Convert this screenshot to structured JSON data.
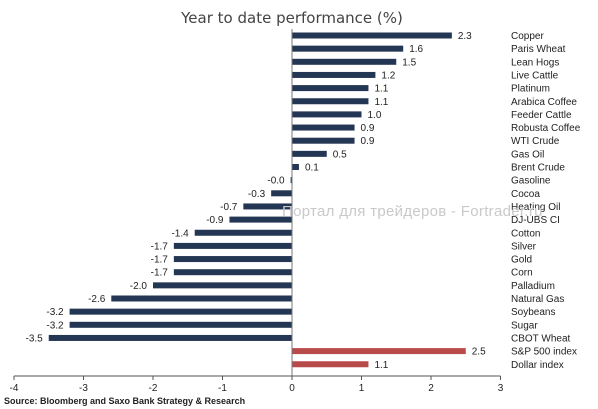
{
  "chart_data": {
    "type": "bar",
    "orientation": "horizontal",
    "title": "Year to date performance (%)",
    "xlim": [
      -4,
      3
    ],
    "x_ticks": [
      -4,
      -3,
      -2,
      -1,
      0,
      1,
      2,
      3
    ],
    "grid": false,
    "series_colors": {
      "commodity": "#233653",
      "index": "#b94a4a"
    },
    "bars": [
      {
        "label": "Copper",
        "value": 2.3,
        "value_text": "2.3",
        "group": "commodity"
      },
      {
        "label": "Paris Wheat",
        "value": 1.6,
        "value_text": "1.6",
        "group": "commodity"
      },
      {
        "label": "Lean Hogs",
        "value": 1.5,
        "value_text": "1.5",
        "group": "commodity"
      },
      {
        "label": "Live Cattle",
        "value": 1.2,
        "value_text": "1.2",
        "group": "commodity"
      },
      {
        "label": "Platinum",
        "value": 1.1,
        "value_text": "1.1",
        "group": "commodity"
      },
      {
        "label": "Arabica Coffee",
        "value": 1.1,
        "value_text": "1.1",
        "group": "commodity"
      },
      {
        "label": "Feeder Cattle",
        "value": 1.0,
        "value_text": "1.0",
        "group": "commodity"
      },
      {
        "label": "Robusta Coffee",
        "value": 0.9,
        "value_text": "0.9",
        "group": "commodity"
      },
      {
        "label": "WTI Crude",
        "value": 0.9,
        "value_text": "0.9",
        "group": "commodity"
      },
      {
        "label": "Gas Oil",
        "value": 0.5,
        "value_text": "0.5",
        "group": "commodity"
      },
      {
        "label": "Brent Crude",
        "value": 0.1,
        "value_text": "0.1",
        "group": "commodity"
      },
      {
        "label": "Gasoline",
        "value": -0.02,
        "value_text": "-0.0",
        "group": "commodity"
      },
      {
        "label": "Cocoa",
        "value": -0.3,
        "value_text": "-0.3",
        "group": "commodity"
      },
      {
        "label": "Heating Oil",
        "value": -0.7,
        "value_text": "-0.7",
        "group": "commodity"
      },
      {
        "label": "DJ-UBS CI",
        "value": -0.9,
        "value_text": "-0.9",
        "group": "commodity"
      },
      {
        "label": "Cotton",
        "value": -1.4,
        "value_text": "-1.4",
        "group": "commodity"
      },
      {
        "label": "Silver",
        "value": -1.7,
        "value_text": "-1.7",
        "group": "commodity"
      },
      {
        "label": "Gold",
        "value": -1.7,
        "value_text": "-1.7",
        "group": "commodity"
      },
      {
        "label": "Corn",
        "value": -1.7,
        "value_text": "-1.7",
        "group": "commodity"
      },
      {
        "label": "Palladium",
        "value": -2.0,
        "value_text": "-2.0",
        "group": "commodity"
      },
      {
        "label": "Natural Gas",
        "value": -2.6,
        "value_text": "-2.6",
        "group": "commodity"
      },
      {
        "label": "Soybeans",
        "value": -3.2,
        "value_text": "-3.2",
        "group": "commodity"
      },
      {
        "label": "Sugar",
        "value": -3.2,
        "value_text": "-3.2",
        "group": "commodity"
      },
      {
        "label": "CBOT Wheat",
        "value": -3.5,
        "value_text": "-3.5",
        "group": "commodity"
      },
      {
        "label": "S&P 500 index",
        "value": 2.5,
        "value_text": "2.5",
        "group": "index"
      },
      {
        "label": "Dollar index",
        "value": 1.1,
        "value_text": "1.1",
        "group": "index"
      }
    ]
  },
  "source_text": "Source: Bloomberg and Saxo Bank Strategy & Research",
  "watermark_text": "Портал для трейдеров - Fortrader.ru"
}
